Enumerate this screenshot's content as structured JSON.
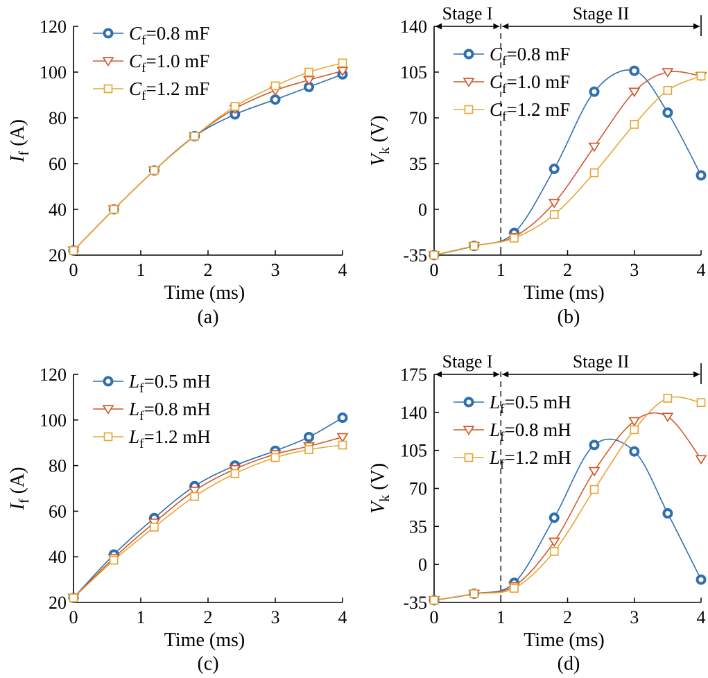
{
  "chart_data": [
    {
      "type": "line",
      "caption": "(a)",
      "xlabel": "Time (ms)",
      "ylabel": {
        "main": "I",
        "sub": "f",
        "unit": " (A)"
      },
      "xlim": [
        0,
        4
      ],
      "ylim": [
        20,
        120
      ],
      "xticks": [
        "0",
        "1",
        "2",
        "3",
        "4"
      ],
      "yticks": [
        "20",
        "40",
        "60",
        "80",
        "100",
        "120"
      ],
      "legend_position": "top-left",
      "series": [
        {
          "name": {
            "main": "C",
            "sub": "f",
            "rest": "=0.8 mF"
          },
          "color": "#2E6FB0",
          "marker": "circle",
          "x": [
            0,
            0.6,
            1.2,
            1.8,
            2.4,
            3.0,
            3.5,
            4.0
          ],
          "y": [
            22,
            40,
            57,
            72,
            81.5,
            88,
            93.5,
            99
          ]
        },
        {
          "name": {
            "main": "C",
            "sub": "f",
            "rest": "=1.0 mF"
          },
          "color": "#D0582B",
          "marker": "triangle",
          "x": [
            0,
            0.6,
            1.2,
            1.8,
            2.4,
            3.0,
            3.5,
            4.0
          ],
          "y": [
            22,
            40,
            57,
            72,
            84,
            92,
            96.5,
            100.5
          ]
        },
        {
          "name": {
            "main": "C",
            "sub": "f",
            "rest": "=1.2 mF"
          },
          "color": "#E8A534",
          "marker": "square",
          "x": [
            0,
            0.6,
            1.2,
            1.8,
            2.4,
            3.0,
            3.5,
            4.0
          ],
          "y": [
            22,
            40,
            57,
            72,
            85,
            94,
            100,
            104
          ]
        }
      ]
    },
    {
      "type": "line",
      "caption": "(b)",
      "xlabel": "Time (ms)",
      "ylabel": {
        "main": "V",
        "sub": "k",
        "unit": " (V)"
      },
      "xlim": [
        0,
        4
      ],
      "ylim": [
        -35,
        140
      ],
      "xticks": [
        "0",
        "1",
        "2",
        "3",
        "4"
      ],
      "yticks": [
        "-35",
        "0",
        "35",
        "70",
        "105",
        "140"
      ],
      "legend_position": "top-left",
      "stages": {
        "boundary_x": 1.0,
        "labels": [
          "Stage I",
          "Stage II"
        ]
      },
      "series": [
        {
          "name": {
            "main": "C",
            "sub": "f",
            "rest": "=0.8 mF"
          },
          "color": "#2E6FB0",
          "marker": "circle",
          "x": [
            0,
            0.6,
            1.2,
            1.8,
            2.4,
            3.0,
            3.5,
            4.0
          ],
          "y": [
            -35,
            -28,
            -18,
            31,
            90,
            106,
            74,
            26
          ]
        },
        {
          "name": {
            "main": "C",
            "sub": "f",
            "rest": "=1.0 mF"
          },
          "color": "#D0582B",
          "marker": "triangle",
          "x": [
            0,
            0.6,
            1.2,
            1.8,
            2.4,
            3.0,
            3.5,
            4.0
          ],
          "y": [
            -35,
            -28,
            -21,
            5,
            48,
            90,
            105,
            102
          ]
        },
        {
          "name": {
            "main": "C",
            "sub": "f",
            "rest": "=1.2 mF"
          },
          "color": "#E8A534",
          "marker": "square",
          "x": [
            0,
            0.6,
            1.2,
            1.8,
            2.4,
            3.0,
            3.5,
            4.0
          ],
          "y": [
            -35,
            -28,
            -22,
            -4,
            28,
            65,
            91,
            102
          ]
        }
      ]
    },
    {
      "type": "line",
      "caption": "(c)",
      "xlabel": "Time (ms)",
      "ylabel": {
        "main": "I",
        "sub": "f",
        "unit": " (A)"
      },
      "xlim": [
        0,
        4
      ],
      "ylim": [
        20,
        120
      ],
      "xticks": [
        "0",
        "1",
        "2",
        "3",
        "4"
      ],
      "yticks": [
        "20",
        "40",
        "60",
        "80",
        "100",
        "120"
      ],
      "legend_position": "top-left",
      "series": [
        {
          "name": {
            "main": "L",
            "sub": "f",
            "rest": "=0.5 mH"
          },
          "color": "#2E6FB0",
          "marker": "circle",
          "x": [
            0,
            0.6,
            1.2,
            1.8,
            2.4,
            3.0,
            3.5,
            4.0
          ],
          "y": [
            22,
            41,
            57,
            71,
            80,
            86.5,
            92.5,
            101
          ]
        },
        {
          "name": {
            "main": "L",
            "sub": "f",
            "rest": "=0.8 mH"
          },
          "color": "#D0582B",
          "marker": "triangle",
          "x": [
            0,
            0.6,
            1.2,
            1.8,
            2.4,
            3.0,
            3.5,
            4.0
          ],
          "y": [
            22,
            39.5,
            55,
            69,
            78.5,
            85,
            88.5,
            92.5
          ]
        },
        {
          "name": {
            "main": "L",
            "sub": "f",
            "rest": "=1.2 mH"
          },
          "color": "#E8A534",
          "marker": "square",
          "x": [
            0,
            0.6,
            1.2,
            1.8,
            2.4,
            3.0,
            3.5,
            4.0
          ],
          "y": [
            22,
            38.5,
            53,
            66.5,
            76.5,
            83.5,
            87,
            89
          ]
        }
      ]
    },
    {
      "type": "line",
      "caption": "(d)",
      "xlabel": "Time (ms)",
      "ylabel": {
        "main": "V",
        "sub": "k",
        "unit": " (V)"
      },
      "xlim": [
        0,
        4
      ],
      "ylim": [
        -35,
        175
      ],
      "xticks": [
        "0",
        "1",
        "2",
        "3",
        "4"
      ],
      "yticks": [
        "-35",
        "0",
        "35",
        "70",
        "105",
        "140",
        "175"
      ],
      "legend_position": "top-left",
      "stages": {
        "boundary_x": 1.0,
        "labels": [
          "Stage I",
          "Stage II"
        ]
      },
      "series": [
        {
          "name": {
            "main": "L",
            "sub": "f",
            "rest": "=0.5 mH"
          },
          "color": "#2E6FB0",
          "marker": "circle",
          "x": [
            0,
            0.6,
            1.2,
            1.8,
            2.4,
            3.0,
            3.5,
            4.0
          ],
          "y": [
            -33,
            -27,
            -17,
            43,
            110,
            104,
            47,
            -14
          ]
        },
        {
          "name": {
            "main": "L",
            "sub": "f",
            "rest": "=0.8 mH"
          },
          "color": "#D0582B",
          "marker": "triangle",
          "x": [
            0,
            0.6,
            1.2,
            1.8,
            2.4,
            3.0,
            3.5,
            4.0
          ],
          "y": [
            -33,
            -27,
            -20,
            21,
            86,
            132,
            136,
            97
          ]
        },
        {
          "name": {
            "main": "L",
            "sub": "f",
            "rest": "=1.2 mH"
          },
          "color": "#E8A534",
          "marker": "square",
          "x": [
            0,
            0.6,
            1.2,
            1.8,
            2.4,
            3.0,
            3.5,
            4.0
          ],
          "y": [
            -33,
            -27,
            -22,
            12,
            69,
            124,
            153,
            149
          ]
        }
      ]
    }
  ]
}
